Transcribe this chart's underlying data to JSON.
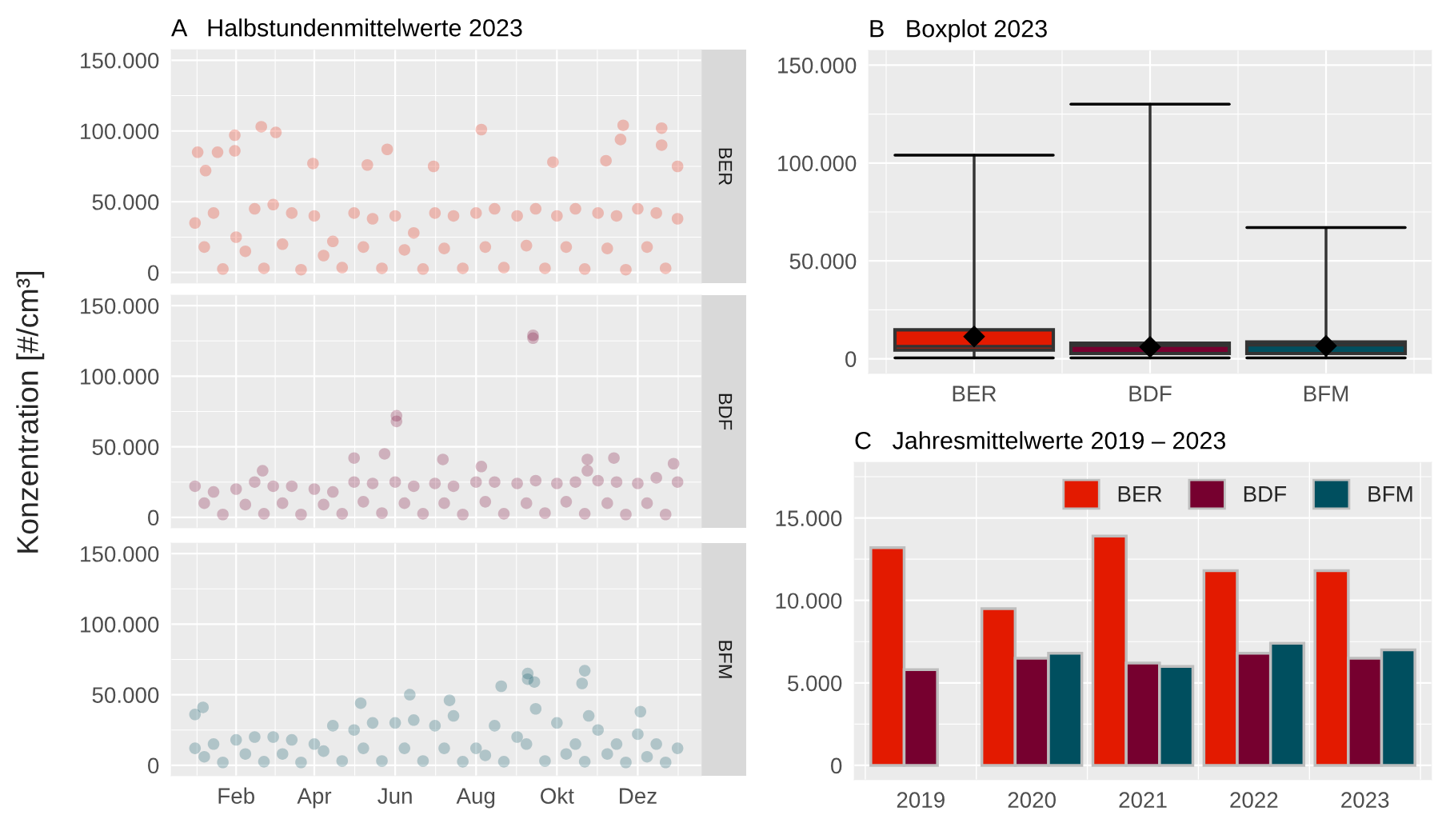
{
  "chart_data": [
    {
      "type": "scatter",
      "title": "A   Halbstundenmittelwerte 2023",
      "ylabel": "Konzentration [#/cm³]",
      "xlim": [
        "2022-12-14",
        "2024-01-18"
      ],
      "xticks": [
        {
          "value": "2023-02-01",
          "label": null
        },
        {
          "value": "2023-04-01",
          "label": null
        },
        {
          "value": "2023-06-01",
          "label": null
        },
        {
          "value": "2023-08-01",
          "label": null
        },
        {
          "value": "2023-10-01",
          "label": null
        },
        {
          "value": "2023-12-01",
          "label": null
        }
      ],
      "ylim": [
        -7500,
        157500
      ],
      "yticks": [
        0,
        {
          "value": 50000,
          "label": "50.000"
        },
        {
          "value": 100000,
          "label": "100.000"
        },
        {
          "value": 150000,
          "label": "150.000"
        }
      ],
      "grid": true,
      "tick_labels": "y",
      "marker": "circle",
      "series": [
        {
          "name": "BER",
          "color": "#e31a00",
          "x": [
            "2023-01-01",
            "2023-01-15",
            "2023-02-01",
            "2023-02-15",
            "2023-03-01",
            "2023-03-15",
            "2023-04-01",
            "2023-04-15",
            "2023-05-01",
            "2023-05-15",
            "2023-06-01",
            "2023-06-15",
            "2023-07-01",
            "2023-07-15",
            "2023-08-01",
            "2023-08-15",
            "2023-09-01",
            "2023-09-15",
            "2023-10-01",
            "2023-10-15",
            "2023-11-01",
            "2023-11-15",
            "2023-12-01",
            "2023-12-15",
            "2023-12-31",
            "2023-01-08",
            "2023-02-08",
            "2023-03-08",
            "2023-04-08",
            "2023-05-08",
            "2023-06-08",
            "2023-07-08",
            "2023-08-08",
            "2023-09-08",
            "2023-10-08",
            "2023-11-08",
            "2023-12-08",
            "2023-01-22",
            "2023-02-22",
            "2023-03-22",
            "2023-04-22",
            "2023-05-22",
            "2023-06-22",
            "2023-07-22",
            "2023-08-22",
            "2023-09-22",
            "2023-10-22",
            "2023-11-22",
            "2023-12-22",
            "2023-01-03",
            "2023-01-09",
            "2023-01-18",
            "2023-01-31",
            "2023-01-31",
            "2023-02-20",
            "2023-03-03",
            "2023-03-31",
            "2023-05-11",
            "2023-05-26",
            "2023-06-30",
            "2023-08-05",
            "2023-09-28",
            "2023-11-07",
            "2023-11-18",
            "2023-11-20",
            "2023-12-19",
            "2023-12-19",
            "2023-12-31"
          ],
          "values": [
            35000,
            42000,
            25000,
            45000,
            48000,
            42000,
            40000,
            22000,
            42000,
            38000,
            40000,
            28000,
            42000,
            40000,
            42000,
            45000,
            40000,
            45000,
            40000,
            45000,
            42000,
            40000,
            45000,
            42000,
            38000,
            18000,
            15000,
            20000,
            12000,
            18000,
            16000,
            17000,
            18000,
            19000,
            18000,
            17000,
            18000,
            2500,
            3000,
            2000,
            3500,
            3000,
            2500,
            3000,
            3500,
            3000,
            2500,
            2000,
            3000,
            85000,
            72000,
            85000,
            97000,
            86000,
            103000,
            99000,
            77000,
            76000,
            87000,
            75000,
            101000,
            78000,
            79000,
            94000,
            104000,
            102000,
            90000,
            75000
          ]
        }
      ]
    },
    {
      "type": "scatter",
      "xlim": [
        "2022-12-14",
        "2024-01-18"
      ],
      "xticks": [
        {
          "value": "2023-02-01",
          "label": null
        },
        {
          "value": "2023-04-01",
          "label": null
        },
        {
          "value": "2023-06-01",
          "label": null
        },
        {
          "value": "2023-08-01",
          "label": null
        },
        {
          "value": "2023-10-01",
          "label": null
        },
        {
          "value": "2023-12-01",
          "label": null
        }
      ],
      "ylim": [
        -7500,
        157500
      ],
      "yticks": [
        0,
        {
          "value": 50000,
          "label": "50.000"
        },
        {
          "value": 100000,
          "label": "100.000"
        },
        {
          "value": 150000,
          "label": "150.000"
        }
      ],
      "grid": true,
      "tick_labels": "y",
      "marker": "circle",
      "series": [
        {
          "name": "BDF",
          "color": "#76002f",
          "x": [
            "2023-01-01",
            "2023-01-15",
            "2023-02-01",
            "2023-02-15",
            "2023-03-01",
            "2023-03-15",
            "2023-04-01",
            "2023-04-15",
            "2023-05-01",
            "2023-05-15",
            "2023-06-01",
            "2023-06-15",
            "2023-07-01",
            "2023-07-15",
            "2023-08-01",
            "2023-08-15",
            "2023-09-01",
            "2023-09-15",
            "2023-10-01",
            "2023-10-15",
            "2023-11-01",
            "2023-11-15",
            "2023-12-01",
            "2023-12-15",
            "2023-12-31",
            "2023-01-08",
            "2023-02-08",
            "2023-03-08",
            "2023-04-08",
            "2023-05-08",
            "2023-06-08",
            "2023-07-08",
            "2023-08-08",
            "2023-09-08",
            "2023-10-08",
            "2023-11-08",
            "2023-12-08",
            "2023-01-22",
            "2023-02-22",
            "2023-03-22",
            "2023-04-22",
            "2023-05-22",
            "2023-06-22",
            "2023-07-22",
            "2023-08-22",
            "2023-09-22",
            "2023-10-22",
            "2023-11-22",
            "2023-12-22",
            "2023-02-21",
            "2023-05-01",
            "2023-05-24",
            "2023-06-02",
            "2023-06-02",
            "2023-07-07",
            "2023-08-05",
            "2023-09-13",
            "2023-09-13",
            "2023-10-24",
            "2023-10-24",
            "2023-11-13",
            "2023-12-28"
          ],
          "values": [
            22000,
            18000,
            20000,
            25000,
            22000,
            22000,
            20000,
            18000,
            25000,
            24000,
            25000,
            22000,
            24000,
            22000,
            25000,
            25000,
            24000,
            26000,
            24000,
            25000,
            26000,
            25000,
            24000,
            28000,
            25000,
            10000,
            9000,
            10000,
            9000,
            11000,
            10000,
            10000,
            11000,
            10000,
            11000,
            10000,
            10000,
            2000,
            2500,
            2000,
            2500,
            3000,
            2500,
            2000,
            2500,
            3000,
            2500,
            2000,
            2000,
            33000,
            42000,
            45000,
            72000,
            68000,
            41000,
            36000,
            129000,
            127000,
            41000,
            33000,
            42000,
            38000
          ]
        }
      ]
    },
    {
      "type": "scatter",
      "xlim": [
        "2022-12-14",
        "2024-01-18"
      ],
      "xticks": [
        {
          "value": "2023-02-01",
          "label": "Feb"
        },
        {
          "value": "2023-04-01",
          "label": "Apr"
        },
        {
          "value": "2023-06-01",
          "label": "Jun"
        },
        {
          "value": "2023-08-01",
          "label": "Aug"
        },
        {
          "value": "2023-10-01",
          "label": "Okt"
        },
        {
          "value": "2023-12-01",
          "label": "Dez"
        }
      ],
      "ylim": [
        -7500,
        157500
      ],
      "yticks": [
        0,
        {
          "value": 50000,
          "label": "50.000"
        },
        {
          "value": 100000,
          "label": "100.000"
        },
        {
          "value": 150000,
          "label": "150.000"
        }
      ],
      "grid": true,
      "marker": "circle",
      "series": [
        {
          "name": "BFM",
          "color": "#004f5f",
          "x": [
            "2023-01-01",
            "2023-01-15",
            "2023-02-01",
            "2023-02-15",
            "2023-03-01",
            "2023-03-15",
            "2023-04-01",
            "2023-04-15",
            "2023-05-01",
            "2023-05-15",
            "2023-06-01",
            "2023-06-15",
            "2023-07-01",
            "2023-07-15",
            "2023-08-01",
            "2023-08-15",
            "2023-09-01",
            "2023-09-15",
            "2023-10-01",
            "2023-10-15",
            "2023-10-25",
            "2023-11-01",
            "2023-11-15",
            "2023-12-01",
            "2023-12-15",
            "2023-12-31",
            "2023-01-08",
            "2023-02-08",
            "2023-03-08",
            "2023-04-08",
            "2023-05-08",
            "2023-06-08",
            "2023-07-08",
            "2023-08-08",
            "2023-09-08",
            "2023-10-08",
            "2023-11-08",
            "2023-12-08",
            "2023-01-22",
            "2023-02-22",
            "2023-03-22",
            "2023-04-22",
            "2023-05-22",
            "2023-06-22",
            "2023-07-22",
            "2023-08-22",
            "2023-09-22",
            "2023-10-22",
            "2023-11-22",
            "2023-12-22",
            "2023-01-01",
            "2023-01-07",
            "2023-05-06",
            "2023-06-12",
            "2023-07-12",
            "2023-08-20",
            "2023-09-09",
            "2023-09-09",
            "2023-09-14",
            "2023-10-20",
            "2023-10-22",
            "2023-12-03"
          ],
          "values": [
            12000,
            15000,
            18000,
            20000,
            20000,
            18000,
            15000,
            28000,
            25000,
            30000,
            30000,
            32000,
            28000,
            35000,
            12000,
            28000,
            20000,
            40000,
            30000,
            15000,
            35000,
            25000,
            15000,
            22000,
            15000,
            12000,
            6000,
            8000,
            8000,
            10000,
            12000,
            12000,
            12000,
            7000,
            15000,
            8000,
            8000,
            6000,
            2000,
            2500,
            2000,
            3000,
            3000,
            3000,
            2500,
            2500,
            3000,
            2500,
            2000,
            2000,
            36000,
            41000,
            44000,
            50000,
            46000,
            56000,
            65000,
            61000,
            59000,
            58000,
            67000,
            38000
          ]
        }
      ]
    },
    {
      "type": "box",
      "title": "B   Boxplot 2023",
      "categories": [
        "BER",
        "BDF",
        "BFM"
      ],
      "colors": [
        "#e31a00",
        "#76002f",
        "#004f5f"
      ],
      "boxes": [
        {
          "low": 500,
          "q1": 4500,
          "median": 6400,
          "q3": 14800,
          "high": 104000,
          "mean": 11400
        },
        {
          "low": 500,
          "q1": 2700,
          "median": 6800,
          "q3": 8000,
          "high": 130000,
          "mean": 6100
        },
        {
          "low": 500,
          "q1": 2700,
          "median": 7000,
          "q3": 8600,
          "high": 67000,
          "mean": 6600
        }
      ],
      "ylim": [
        -7500,
        157500
      ],
      "yticks": [
        0,
        {
          "value": 50000,
          "label": "50.000"
        },
        {
          "value": 100000,
          "label": "100.000"
        },
        {
          "value": 150000,
          "label": "150.000"
        }
      ],
      "grid": true
    },
    {
      "type": "bar",
      "title": "C   Jahresmittelwerte 2019 – 2023",
      "categories": [
        "2019",
        "2020",
        "2021",
        "2022",
        "2023"
      ],
      "series": [
        {
          "name": "BER",
          "color": "#e31a00",
          "values": [
            13200,
            9500,
            13900,
            11800,
            11800
          ]
        },
        {
          "name": "BDF",
          "color": "#76002f",
          "values": [
            5800,
            6500,
            6200,
            6800,
            6500
          ]
        },
        {
          "name": "BFM",
          "color": "#004f5f",
          "values": [
            null,
            6800,
            6000,
            7400,
            7000
          ]
        }
      ],
      "ylim": [
        -875,
        18375
      ],
      "yticks": [
        0,
        {
          "value": 5000,
          "label": "5.000"
        },
        {
          "value": 10000,
          "label": "10.000"
        },
        {
          "value": 15000,
          "label": "15.000"
        }
      ],
      "grid": true,
      "legend": "top right"
    }
  ]
}
